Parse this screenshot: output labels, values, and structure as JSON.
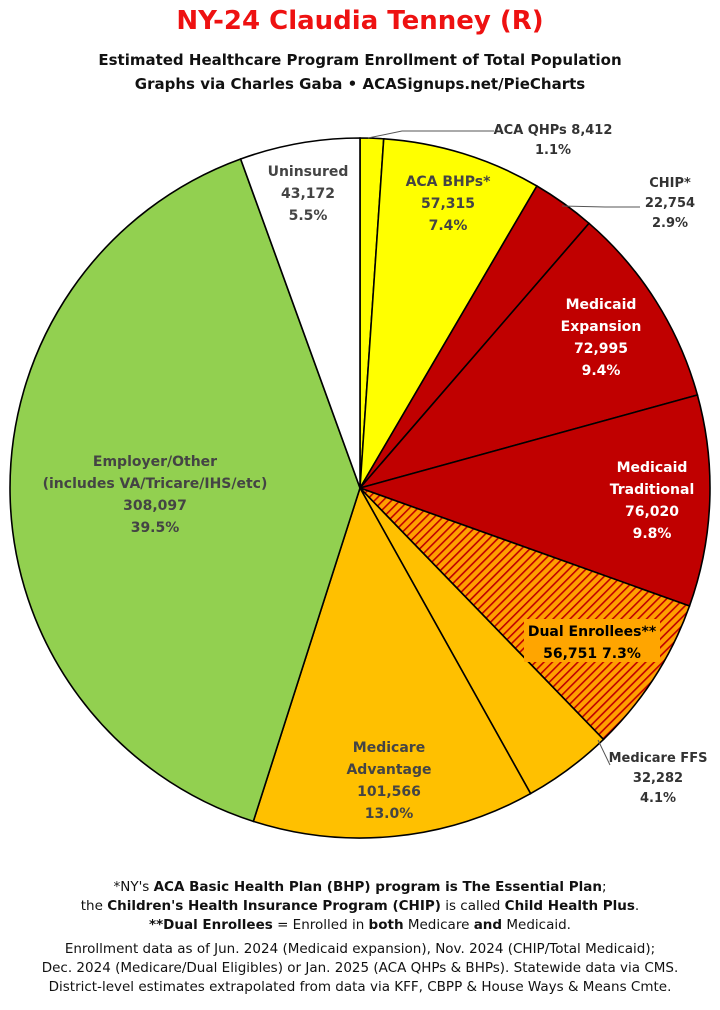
{
  "title": "NY-24 Claudia Tenney (R)",
  "subtitle_1": "Estimated Healthcare Program Enrollment of Total Population",
  "subtitle_2": "Graphs via Charles Gaba  •  ACASignups.net/PieCharts",
  "chart_data": {
    "type": "pie",
    "slices": [
      {
        "label": "ACA QHPs",
        "value": 8412,
        "pct": "1.1%",
        "color": "#ffff00"
      },
      {
        "label": "ACA BHPs*",
        "value": 57315,
        "pct": "7.4%",
        "color": "#ffff00"
      },
      {
        "label": "CHIP*",
        "value": 22754,
        "pct": "2.9%",
        "color": "#c00000"
      },
      {
        "label": "Medicaid Expansion",
        "value": 72995,
        "pct": "9.4%",
        "color": "#c00000"
      },
      {
        "label": "Medicaid Traditional",
        "value": 76020,
        "pct": "9.8%",
        "color": "#c00000"
      },
      {
        "label": "Dual Enrollees**",
        "value": 56751,
        "pct": "7.3%",
        "color": "#c00000",
        "pattern": "hatched-orange"
      },
      {
        "label": "Medicare FFS",
        "value": 32282,
        "pct": "4.1%",
        "color": "#ffc000"
      },
      {
        "label": "Medicare Advantage",
        "value": 101566,
        "pct": "13.0%",
        "color": "#ffc000"
      },
      {
        "label": "Employer/Other (includes VA/Tricare/IHS/etc)",
        "value": 308097,
        "pct": "39.5%",
        "color": "#92d050"
      },
      {
        "label": "Uninsured",
        "value": 43172,
        "pct": "5.5%",
        "color": "#ffffff"
      }
    ],
    "start": "12 o'clock",
    "direction": "clockwise"
  },
  "slice_text": {
    "qhp": "ACA QHPs 8,412",
    "qhp_pct": "1.1%",
    "bhp": [
      "ACA BHPs*",
      "57,315",
      "7.4%"
    ],
    "chip": [
      "CHIP*",
      "22,754",
      "2.9%"
    ],
    "mexp": [
      "Medicaid",
      "Expansion",
      "72,995",
      "9.4%"
    ],
    "mtrad": [
      "Medicaid",
      "Traditional",
      "76,020",
      "9.8%"
    ],
    "dual": [
      "Dual Enrollees**",
      "56,751 7.3%"
    ],
    "mffs": [
      "Medicare FFS",
      "32,282",
      "4.1%"
    ],
    "madv": [
      "Medicare",
      "Advantage",
      "101,566",
      "13.0%"
    ],
    "emp": [
      "Employer/Other",
      "(includes VA/Tricare/IHS/etc)",
      "308,097",
      "39.5%"
    ],
    "unins": [
      "Uninsured",
      "43,172",
      "5.5%"
    ]
  },
  "footer": {
    "line1_a": "*NY's ",
    "line1_b": "ACA Basic Health Plan (BHP) program is The Essential Plan",
    "line1_c": ";",
    "line2_a": "the ",
    "line2_b": "Children's Health Insurance Program (CHIP)",
    "line2_c": " is called ",
    "line2_d": "Child Health Plus",
    "line2_e": ".",
    "line3_a": "**Dual Enrollees",
    "line3_b": " = Enrolled in ",
    "line3_c": "both",
    "line3_d": " Medicare ",
    "line3_e": "and",
    "line3_f": " Medicaid.",
    "line4": "Enrollment data as of Jun. 2024 (Medicaid expansion), Nov. 2024 (CHIP/Total Medicaid);",
    "line5": "Dec. 2024 (Medicare/Dual Eligibles) or Jan. 2025 (ACA QHPs & BHPs). Statewide data via CMS.",
    "line6": "District-level estimates extrapolated from data via KFF, CBPP & House Ways & Means Cmte."
  }
}
